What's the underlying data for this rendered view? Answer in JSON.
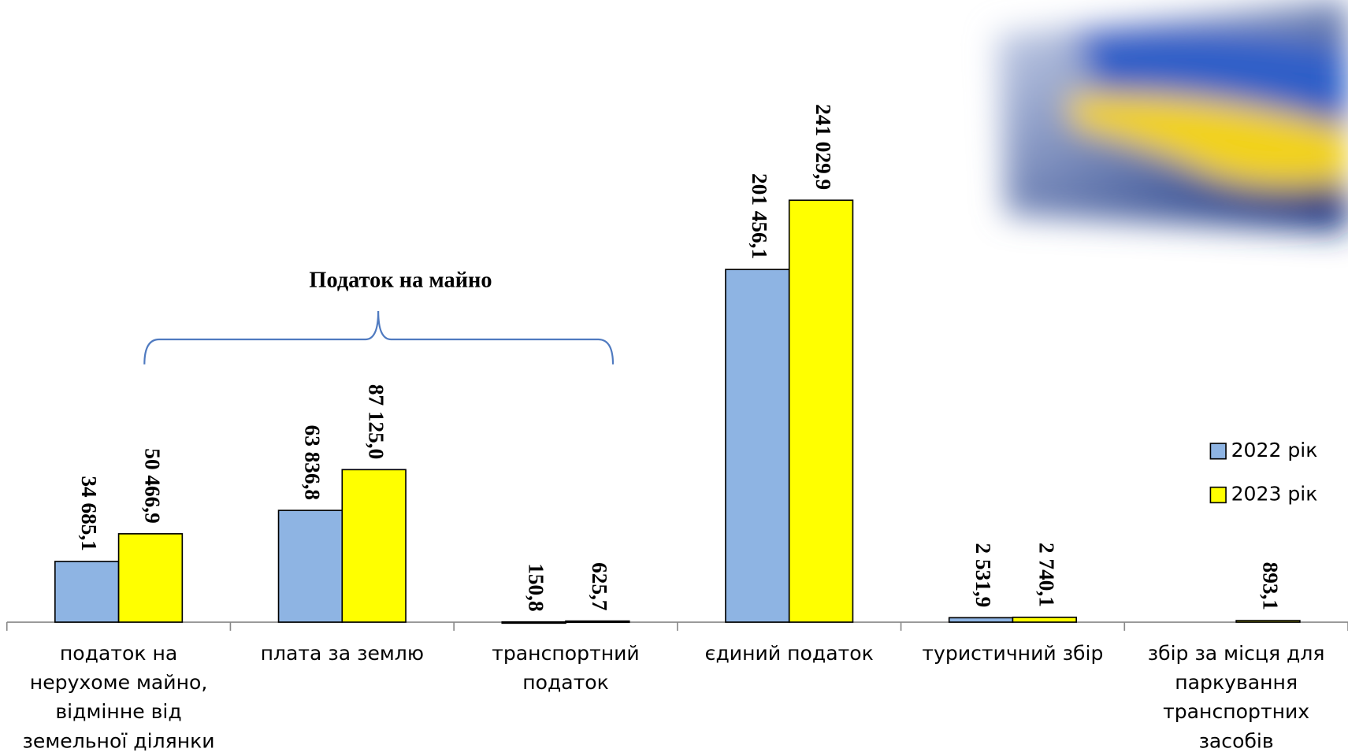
{
  "chart_data": {
    "type": "bar",
    "annotation": "Податок на майно",
    "categories": [
      "податок на нерухоме майно, відмінне від земельної ділянки",
      "плата за землю",
      "транспортний податок",
      "єдиний податок",
      "туристичний збір",
      "збір за місця для паркування транспортних засобів"
    ],
    "series": [
      {
        "name": "2022 рік",
        "color": "#8eb4e3",
        "values": [
          34685.1,
          63836.8,
          150.8,
          201456.1,
          2531.9,
          null
        ],
        "value_labels": [
          "34 685,1",
          "63 836,8",
          "150,8",
          "201 456,1",
          "2 531,9",
          null
        ]
      },
      {
        "name": "2023 рік",
        "color": "#ffff00",
        "values": [
          50466.9,
          87125.0,
          625.7,
          241029.9,
          2740.1,
          893.1
        ],
        "value_labels": [
          "50 466,9",
          "87 125,0",
          "625,7",
          "241 029,9",
          "2 740,1",
          "893,1"
        ]
      }
    ],
    "legend": "right"
  }
}
